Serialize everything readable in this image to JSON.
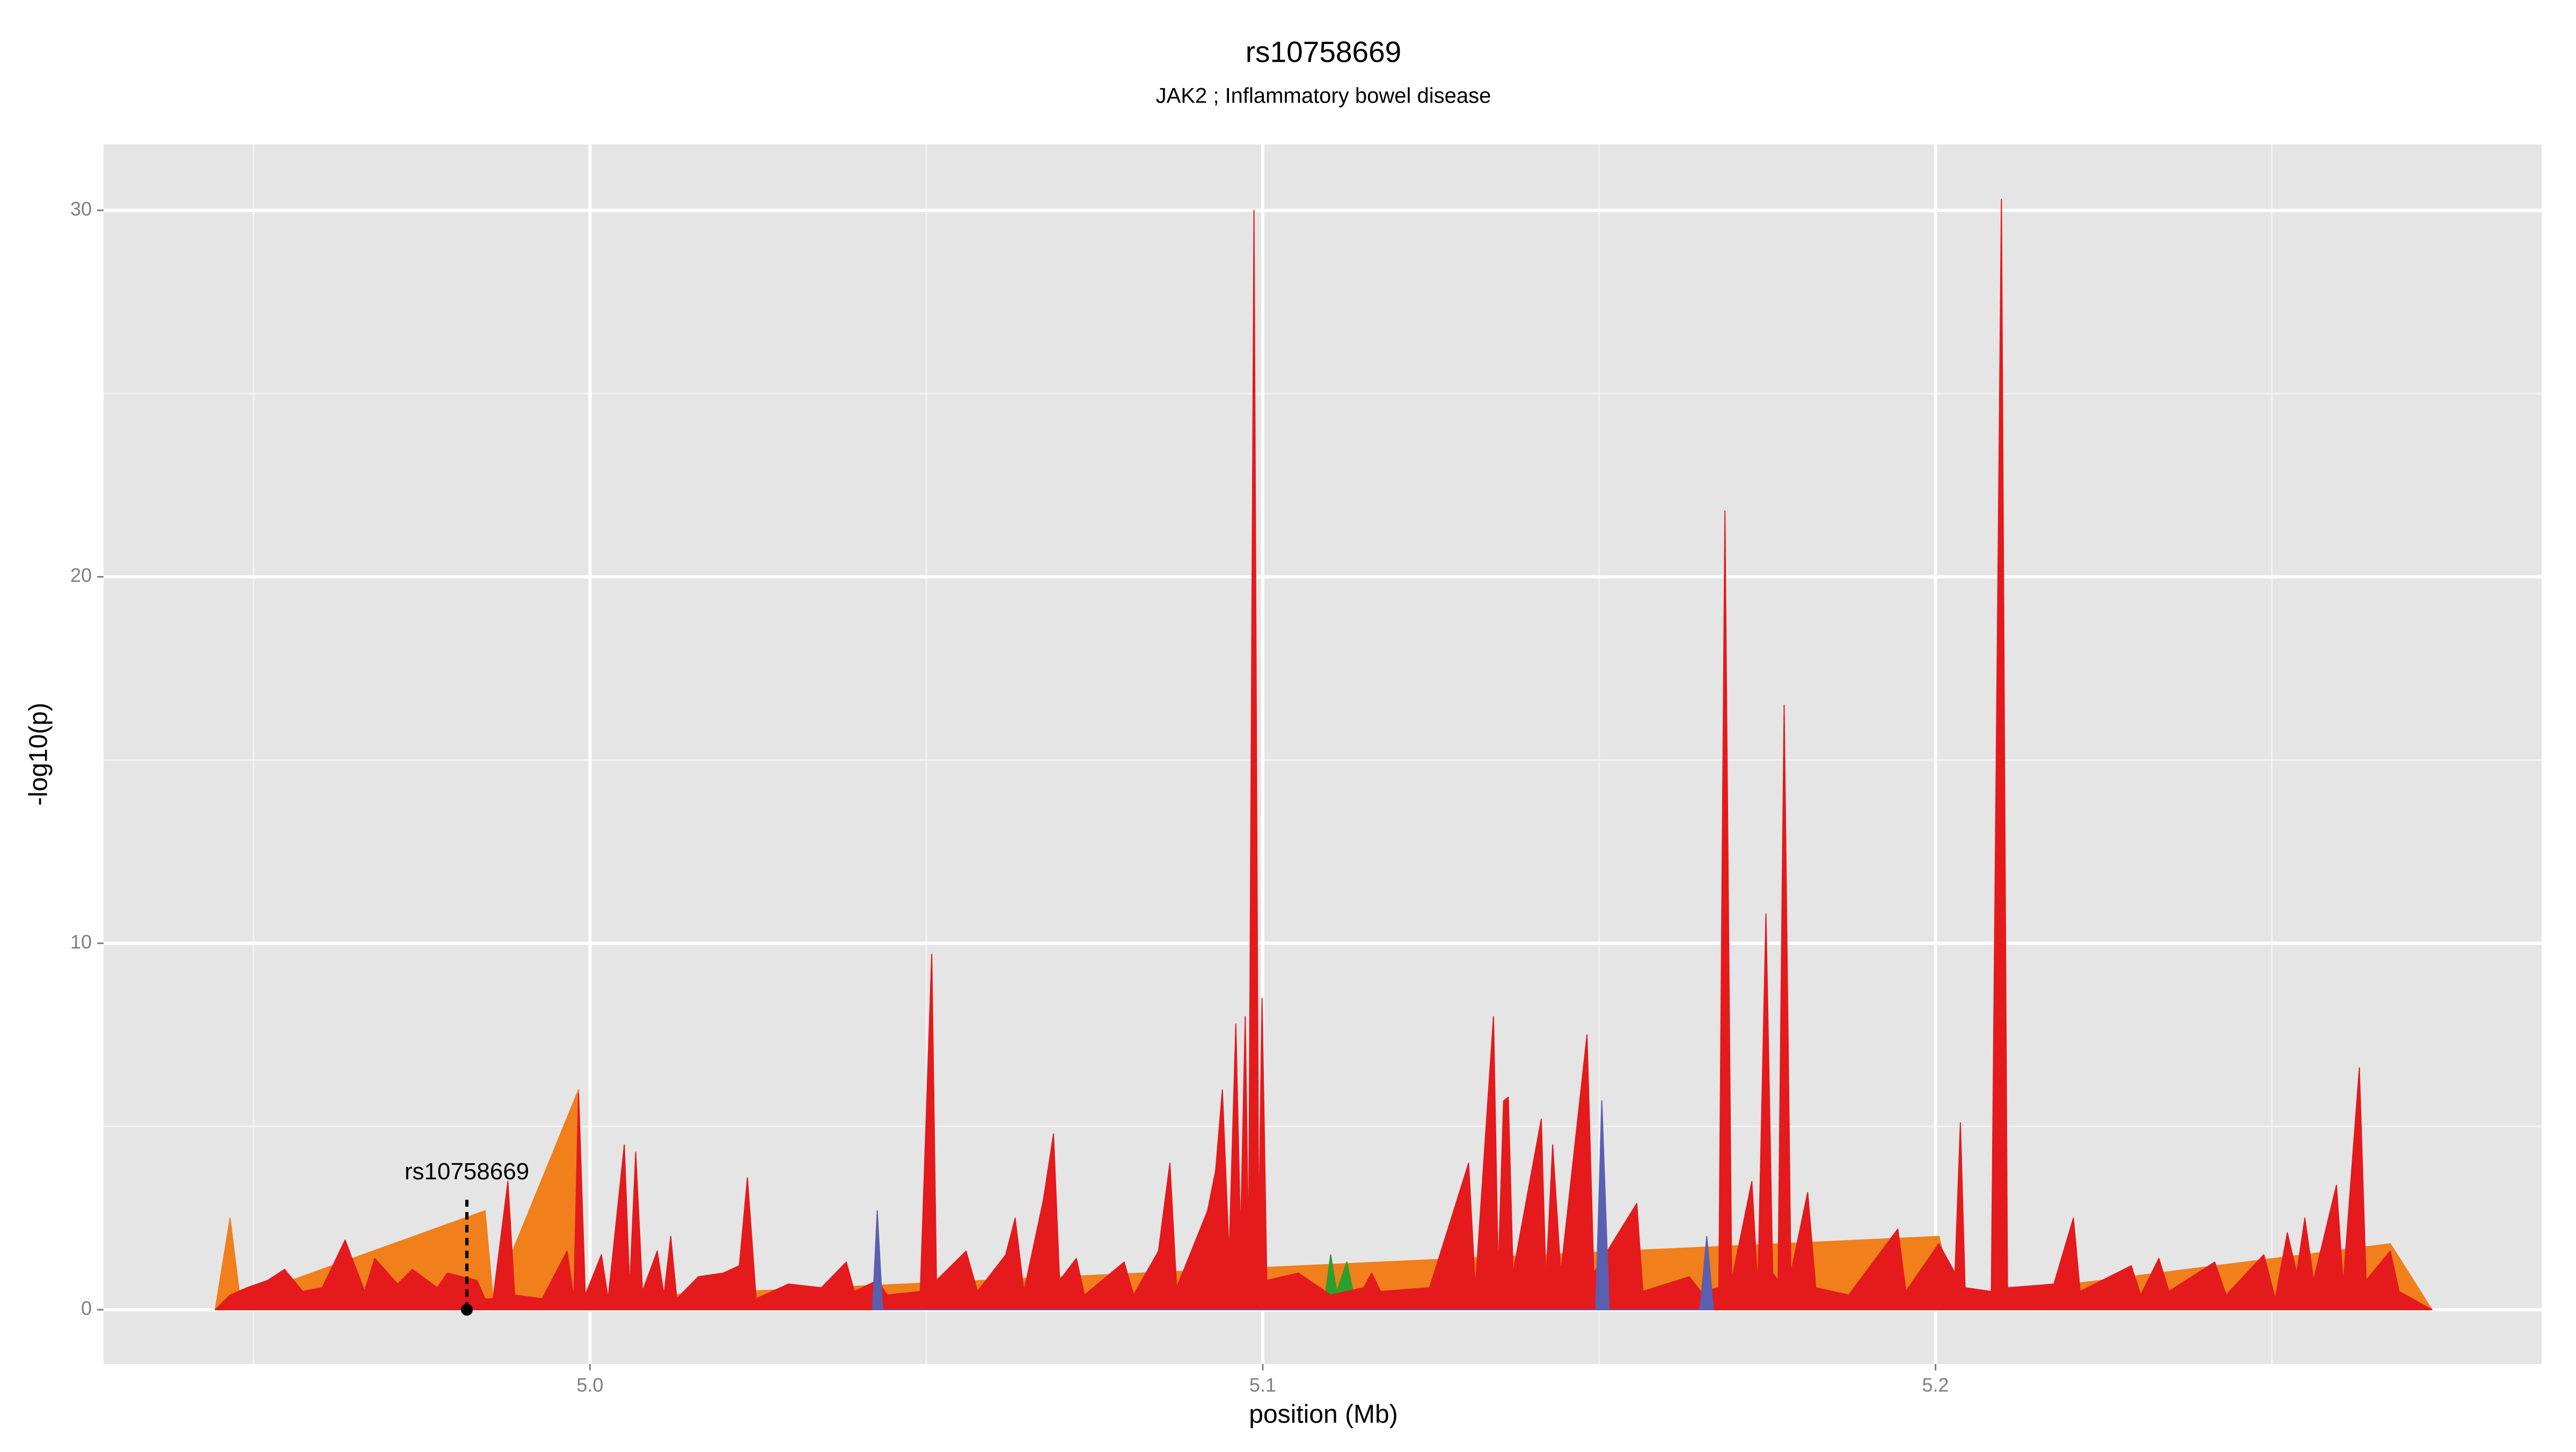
{
  "chart_data": {
    "type": "area",
    "title": "rs10758669",
    "subtitle": "JAK2 ; Inflammatory bowel disease",
    "x_label": "position (Mb)",
    "y_label": "-log10(p)",
    "xlim": [
      4.9277,
      5.2901
    ],
    "ylim": [
      -1.48,
      31.8
    ],
    "xticks": [
      {
        "value": 5,
        "label": "5.0"
      },
      5.1,
      5.2
    ],
    "yticks": [
      0,
      10,
      20,
      30
    ],
    "minor_xticks": [
      4.95,
      5.05,
      5.15,
      5.25
    ],
    "minor_yticks": [
      5,
      15,
      25
    ],
    "grid": true,
    "series": [
      {
        "name": "orange",
        "color": "#f07f1c",
        "x": [
          4.9443,
          4.9465,
          4.948,
          4.9844,
          4.9856,
          4.9983,
          4.9993,
          5.2005,
          5.2029,
          5.2676,
          5.2738
        ],
        "values": [
          0,
          2.5,
          0.3,
          2.7,
          0.3,
          6.0,
          0.3,
          2.0,
          0.3,
          1.8,
          0
        ]
      },
      {
        "name": "green",
        "color": "#2ca02c",
        "x": [
          5.109,
          5.1101,
          5.111,
          5.1125,
          5.114
        ],
        "values": [
          0,
          1.5,
          0.5,
          1.3,
          0
        ]
      },
      {
        "name": "red",
        "color": "#e41a1c",
        "x": [
          4.9443,
          4.9465,
          4.949,
          4.9521,
          4.9546,
          4.9573,
          4.9602,
          4.9636,
          4.9665,
          4.968,
          4.9714,
          4.9736,
          4.9773,
          4.9788,
          4.9832,
          4.9844,
          4.9856,
          4.9878,
          4.9888,
          4.9929,
          4.9966,
          4.9976,
          4.9983,
          4.9993,
          5.0017,
          5.0027,
          5.0051,
          5.0059,
          5.0068,
          5.0078,
          5.01,
          5.011,
          5.012,
          5.0129,
          5.0161,
          5.0198,
          5.0222,
          5.0234,
          5.0247,
          5.0295,
          5.0344,
          5.0381,
          5.0393,
          5.0427,
          5.0442,
          5.0491,
          5.0508,
          5.0515,
          5.0559,
          5.0576,
          5.0618,
          5.0632,
          5.0645,
          5.0674,
          5.0689,
          5.0698,
          5.0723,
          5.0735,
          5.0794,
          5.0808,
          5.0845,
          5.0862,
          5.0872,
          5.0918,
          5.093,
          5.094,
          5.095,
          5.096,
          5.0967,
          5.0974,
          5.0979,
          5.0987,
          5.0994,
          5.0999,
          5.1006,
          5.1053,
          5.1101,
          5.115,
          5.1162,
          5.1175,
          5.1248,
          5.1306,
          5.1316,
          5.1343,
          5.135,
          5.1358,
          5.1365,
          5.1372,
          5.1414,
          5.1421,
          5.1431,
          5.1443,
          5.1482,
          5.1492,
          5.1556,
          5.1565,
          5.1634,
          5.1651,
          5.1678,
          5.1687,
          5.1697,
          5.1727,
          5.1736,
          5.1748,
          5.1758,
          5.1766,
          5.1775,
          5.1785,
          5.181,
          5.1822,
          5.1871,
          5.1944,
          5.1956,
          5.2005,
          5.2029,
          5.2037,
          5.2044,
          5.2083,
          5.2098,
          5.2107,
          5.2176,
          5.2205,
          5.2215,
          5.2291,
          5.2305,
          5.2332,
          5.2347,
          5.2415,
          5.2432,
          5.2488,
          5.2505,
          5.2523,
          5.2537,
          5.2549,
          5.2562,
          5.2596,
          5.2606,
          5.263,
          5.264,
          5.2676,
          5.2689,
          5.2738
        ],
        "values": [
          0,
          0.4,
          0.6,
          0.8,
          1.1,
          0.5,
          0.6,
          1.9,
          0.5,
          1.4,
          0.7,
          1.1,
          0.6,
          1.0,
          0.8,
          0.3,
          0.3,
          3.5,
          0.4,
          0.3,
          1.6,
          0.3,
          5.9,
          0.4,
          1.5,
          0.3,
          4.5,
          0.6,
          4.3,
          0.5,
          1.6,
          0.4,
          2.0,
          0.3,
          0.9,
          1.0,
          1.2,
          3.6,
          0.3,
          0.7,
          0.6,
          1.3,
          0.5,
          0.8,
          0.4,
          0.5,
          9.7,
          0.8,
          1.6,
          0.5,
          1.5,
          2.5,
          0.5,
          3.0,
          4.8,
          0.8,
          1.4,
          0.4,
          1.3,
          0.4,
          1.6,
          4.0,
          0.6,
          2.7,
          3.8,
          6.0,
          1.5,
          7.8,
          2.0,
          8.0,
          1.5,
          30.0,
          2.0,
          8.5,
          0.8,
          1.0,
          0.4,
          0.6,
          1.0,
          0.5,
          0.6,
          4.0,
          0.6,
          8.0,
          1.0,
          5.7,
          5.8,
          1.0,
          5.2,
          0.8,
          4.5,
          1.0,
          7.5,
          1.0,
          2.9,
          0.5,
          0.9,
          0.5,
          0.6,
          21.8,
          0.8,
          3.5,
          0.6,
          10.8,
          1.0,
          0.8,
          16.5,
          1.0,
          3.2,
          0.6,
          0.4,
          2.2,
          0.5,
          1.8,
          1.0,
          5.1,
          0.6,
          0.5,
          30.3,
          0.6,
          0.7,
          2.5,
          0.5,
          1.2,
          0.4,
          1.4,
          0.5,
          1.3,
          0.4,
          1.5,
          0.3,
          2.1,
          1.0,
          2.5,
          0.8,
          3.4,
          0.7,
          6.6,
          0.8,
          1.6,
          0.5,
          0
        ]
      },
      {
        "name": "blue",
        "color": "#5a5fb0",
        "x": [
          5.042,
          5.0427,
          5.0435,
          5.1495,
          5.1504,
          5.1515,
          5.165,
          5.166,
          5.167
        ],
        "values": [
          0,
          2.7,
          0,
          0,
          5.7,
          0,
          0,
          2.0,
          0
        ]
      }
    ],
    "annotation": {
      "label": "rs10758669",
      "x": 4.9817,
      "y": 3.0
    }
  }
}
